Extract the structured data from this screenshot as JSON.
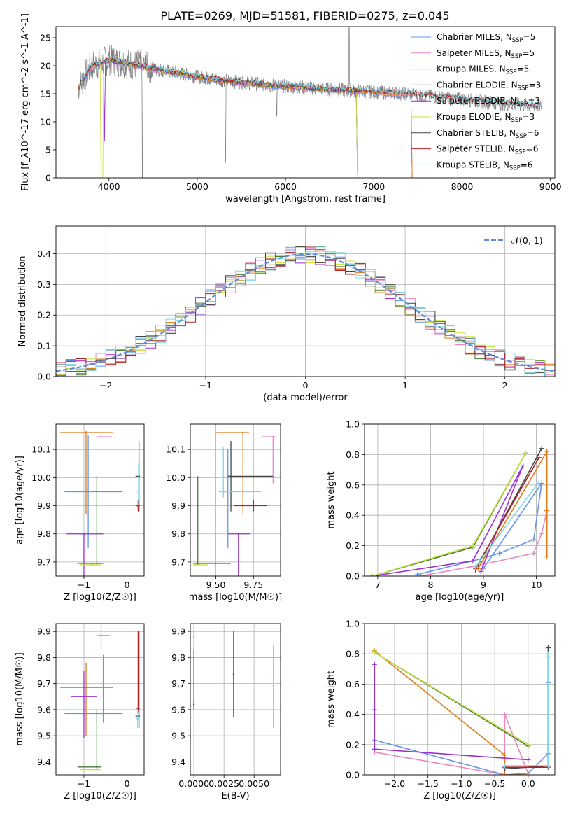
{
  "figure_title": "PLATE=0269, MJD=51581, FIBERID=0275, z=0.045",
  "colors": {
    "chab_miles": "#6495ed",
    "salp_miles": "#e889c0",
    "krou_miles": "#e07b1a",
    "chab_elodie": "#4a7a3a",
    "salp_elodie": "#9932cc",
    "krou_elodie": "#c8e040",
    "chab_stelib": "#444444",
    "salp_stelib": "#b22222",
    "krou_stelib": "#7fd8e8",
    "data": "#808080",
    "gauss": "#5b8dd6"
  },
  "chart_data": [
    {
      "id": "spectrum",
      "type": "line",
      "xlabel": "wavelength [Angstrom, rest frame]",
      "ylabel": "Flux [f_λ10^-17 erg cm^-2 s^-1 A^-1]",
      "xlim": [
        3400,
        9050
      ],
      "ylim": [
        0,
        27
      ],
      "xticks": [
        4000,
        5000,
        6000,
        7000,
        8000,
        9000
      ],
      "yticks": [
        0,
        5,
        10,
        15,
        20,
        25
      ],
      "legend_position": "upper right",
      "continuum_anchors": {
        "x": [
          3650,
          3800,
          4000,
          4200,
          4500,
          5000,
          5500,
          6000,
          6500,
          7000,
          7400,
          7600,
          8000,
          8500,
          8900
        ],
        "y": [
          16,
          20,
          21,
          20.5,
          19.5,
          18,
          17,
          16.3,
          15.8,
          15.3,
          15.0,
          14.6,
          14.0,
          13.2,
          12.8
        ]
      },
      "legend": [
        {
          "label": "Chabrier MILES, N",
          "sub": "SSP",
          "suffix": "=5",
          "color_key": "chab_miles"
        },
        {
          "label": "Salpeter MILES, N",
          "sub": "SSP",
          "suffix": "=5",
          "color_key": "salp_miles"
        },
        {
          "label": "Kroupa MILES, N",
          "sub": "SSP",
          "suffix": "=5",
          "color_key": "krou_miles"
        },
        {
          "label": "Chabrier ELODIE, N",
          "sub": "SSP",
          "suffix": "=3",
          "color_key": "chab_elodie"
        },
        {
          "label": "Salpeter ELODIE, N",
          "sub": "SSP",
          "suffix": "=3",
          "color_key": "salp_elodie"
        },
        {
          "label": "Kroupa ELODIE, N",
          "sub": "SSP",
          "suffix": "=3",
          "color_key": "krou_elodie"
        },
        {
          "label": "Chabrier STELIB, N",
          "sub": "SSP",
          "suffix": "=6",
          "color_key": "chab_stelib"
        },
        {
          "label": "Salpeter STELIB, N",
          "sub": "SSP",
          "suffix": "=6",
          "color_key": "salp_stelib"
        },
        {
          "label": "Kroupa STELIB, N",
          "sub": "SSP",
          "suffix": "=6",
          "color_key": "krou_stelib"
        }
      ]
    },
    {
      "id": "residuals",
      "type": "line",
      "xlabel": "(data-model)/error",
      "ylabel": "Normed distribution",
      "xlim": [
        -2.5,
        2.5
      ],
      "ylim": [
        0,
        0.49
      ],
      "xticks": [
        -2,
        -1,
        0,
        1,
        2
      ],
      "yticks": [
        0.0,
        0.1,
        0.2,
        0.3,
        0.4
      ],
      "grid": true,
      "legend": [
        {
          "label": "𝒩(0, 1)",
          "style": "dashed"
        }
      ],
      "legend_position": "upper right"
    },
    {
      "id": "age_vs_Z",
      "type": "scatter",
      "xlabel": "Z [log10(Z/Z☉)]",
      "ylabel": "age  [log10(age/yr)]",
      "xlim": [
        -1.65,
        0.4
      ],
      "ylim": [
        9.65,
        10.19
      ],
      "xticks": [
        -1,
        0
      ],
      "yticks": [
        9.7,
        9.8,
        9.9,
        10.0,
        10.1
      ],
      "grid": true,
      "points": [
        {
          "k": "chab_miles",
          "x": -0.9,
          "y": 9.95,
          "xe": [
            -1.45,
            -0.1
          ],
          "ye": [
            9.75,
            10.15
          ]
        },
        {
          "k": "salp_miles",
          "x": -0.6,
          "y": 10.145,
          "xe": [
            -0.7,
            -0.35
          ],
          "ye": [
            10.145,
            10.145
          ]
        },
        {
          "k": "krou_miles",
          "x": -0.95,
          "y": 10.16,
          "xe": [
            -1.55,
            -0.33
          ],
          "ye": [
            9.87,
            10.165
          ]
        },
        {
          "k": "chab_elodie",
          "x": -0.7,
          "y": 9.695,
          "xe": [
            -1.15,
            -0.55
          ],
          "ye": [
            9.69,
            10.005
          ]
        },
        {
          "k": "salp_elodie",
          "x": -1.0,
          "y": 9.8,
          "xe": [
            -1.4,
            -0.55
          ],
          "ye": [
            9.65,
            9.8
          ]
        },
        {
          "k": "krou_elodie",
          "x": -0.8,
          "y": 9.69,
          "xe": [
            -1.1,
            -0.6
          ],
          "ye": [
            9.69,
            9.69
          ]
        },
        {
          "k": "chab_stelib",
          "x": 0.28,
          "y": 10.005,
          "xe": [
            0.2,
            0.3
          ],
          "ye": [
            9.88,
            10.13
          ]
        },
        {
          "k": "salp_stelib",
          "x": 0.26,
          "y": 9.9,
          "xe": [
            0.2,
            0.3
          ],
          "ye": [
            9.88,
            9.92
          ]
        },
        {
          "k": "krou_stelib",
          "x": 0.27,
          "y": 9.95,
          "xe": [
            0.24,
            0.29
          ],
          "ye": [
            9.9,
            10.05
          ]
        }
      ]
    },
    {
      "id": "age_vs_mass",
      "type": "scatter",
      "xlabel": "mass [log10(M/M☉)]",
      "ylabel": "",
      "xlim": [
        9.33,
        9.93
      ],
      "ylim": [
        9.65,
        10.19
      ],
      "xticks": [
        9.5,
        9.75
      ],
      "xtick_labels": [
        "9.50",
        "9.75"
      ],
      "yticks": [
        9.7,
        9.8,
        9.9,
        10.0,
        10.1
      ],
      "grid": true,
      "points": [
        {
          "k": "chab_miles",
          "x": 9.58,
          "y": 9.95,
          "xe": [
            9.55,
            9.61
          ],
          "ye": [
            9.75,
            10.1
          ]
        },
        {
          "k": "salp_miles",
          "x": 9.88,
          "y": 10.145,
          "xe": [
            9.81,
            9.9
          ],
          "ye": [
            9.98,
            10.145
          ]
        },
        {
          "k": "krou_miles",
          "x": 9.68,
          "y": 10.16,
          "xe": [
            9.5,
            9.72
          ],
          "ye": [
            9.87,
            10.165
          ]
        },
        {
          "k": "chab_elodie",
          "x": 9.38,
          "y": 9.695,
          "xe": [
            9.35,
            9.6
          ],
          "ye": [
            9.69,
            10.005
          ]
        },
        {
          "k": "salp_elodie",
          "x": 9.65,
          "y": 9.8,
          "xe": [
            9.58,
            9.73
          ],
          "ye": [
            9.65,
            9.8
          ]
        },
        {
          "k": "krou_elodie",
          "x": 9.37,
          "y": 9.69,
          "xe": [
            9.35,
            9.45
          ],
          "ye": [
            9.69,
            9.69
          ]
        },
        {
          "k": "chab_stelib",
          "x": 9.6,
          "y": 10.005,
          "xe": [
            9.58,
            9.88
          ],
          "ye": [
            9.88,
            10.13
          ]
        },
        {
          "k": "salp_stelib",
          "x": 9.75,
          "y": 9.9,
          "xe": [
            9.62,
            9.84
          ],
          "ye": [
            9.88,
            9.92
          ]
        },
        {
          "k": "krou_stelib",
          "x": 9.55,
          "y": 9.95,
          "xe": [
            9.52,
            9.8
          ],
          "ye": [
            9.93,
            10.11
          ]
        }
      ]
    },
    {
      "id": "weight_vs_age",
      "type": "line",
      "xlabel": "age  [log10(age/yr)]",
      "ylabel": "mass weight",
      "xlim": [
        6.75,
        10.35
      ],
      "ylim": [
        0,
        1.0
      ],
      "xticks": [
        7,
        8,
        9,
        10
      ],
      "yticks": [
        0.0,
        0.2,
        0.4,
        0.6,
        0.8,
        1.0
      ],
      "grid": true,
      "series": [
        {
          "k": "chab_miles",
          "x": [
            7.75,
            8.8,
            9.3,
            9.95,
            10.1,
            9.0
          ],
          "y": [
            0.01,
            0.1,
            0.15,
            0.24,
            0.61,
            0.05
          ]
        },
        {
          "k": "salp_miles",
          "x": [
            7.8,
            8.9,
            9.95,
            10.1,
            10.2
          ],
          "y": [
            0.0,
            0.07,
            0.15,
            0.28,
            0.43
          ]
        },
        {
          "k": "krou_miles",
          "x": [
            8.9,
            10.2,
            10.2,
            10.2
          ],
          "y": [
            0.05,
            0.82,
            0.43,
            0.13
          ]
        },
        {
          "k": "chab_elodie",
          "x": [
            6.9,
            8.8,
            9.8
          ],
          "y": [
            0.0,
            0.19,
            0.81
          ]
        },
        {
          "k": "salp_elodie",
          "x": [
            6.9,
            8.8,
            9.75,
            8.95
          ],
          "y": [
            0.0,
            0.1,
            0.73,
            0.03
          ]
        },
        {
          "k": "krou_elodie",
          "x": [
            6.9,
            8.8,
            9.8
          ],
          "y": [
            0.0,
            0.2,
            0.81
          ]
        },
        {
          "k": "chab_stelib",
          "x": [
            8.85,
            10.1
          ],
          "y": [
            0.04,
            0.84
          ]
        },
        {
          "k": "salp_stelib",
          "x": [
            8.85,
            10.05
          ],
          "y": [
            0.05,
            0.78
          ]
        },
        {
          "k": "krou_stelib",
          "x": [
            8.85,
            10.05
          ],
          "y": [
            0.06,
            0.62
          ]
        }
      ]
    },
    {
      "id": "mass_vs_Z",
      "type": "scatter",
      "xlabel": "Z [log10(Z/Z☉)]",
      "ylabel": "mass [log10(M/M☉)]",
      "xlim": [
        -1.65,
        0.4
      ],
      "ylim": [
        9.35,
        9.93
      ],
      "xticks": [
        -1,
        0
      ],
      "yticks": [
        9.4,
        9.5,
        9.6,
        9.7,
        9.8,
        9.9
      ],
      "grid": true,
      "points": [
        {
          "k": "chab_miles",
          "x": -0.55,
          "y": 9.585,
          "xe": [
            -1.45,
            -0.1
          ],
          "ye": [
            9.55,
            9.81
          ]
        },
        {
          "k": "salp_miles",
          "x": -0.6,
          "y": 9.885,
          "xe": [
            -0.7,
            -0.4
          ],
          "ye": [
            9.83,
            9.93
          ]
        },
        {
          "k": "krou_miles",
          "x": -0.95,
          "y": 9.685,
          "xe": [
            -1.55,
            -0.33
          ],
          "ye": [
            9.5,
            9.78
          ]
        },
        {
          "k": "chab_elodie",
          "x": -0.7,
          "y": 9.38,
          "xe": [
            -1.15,
            -0.6
          ],
          "ye": [
            9.37,
            9.6
          ]
        },
        {
          "k": "salp_elodie",
          "x": -1.0,
          "y": 9.65,
          "xe": [
            -1.3,
            -0.7
          ],
          "ye": [
            9.49,
            9.75
          ]
        },
        {
          "k": "krou_elodie",
          "x": -0.85,
          "y": 9.37,
          "xe": [
            -1.1,
            -0.6
          ],
          "ye": [
            9.37,
            9.37
          ]
        },
        {
          "k": "chab_stelib",
          "x": 0.28,
          "y": 9.575,
          "xe": [
            0.2,
            0.3
          ],
          "ye": [
            9.53,
            9.9
          ]
        },
        {
          "k": "salp_stelib",
          "x": 0.26,
          "y": 9.605,
          "xe": [
            0.2,
            0.3
          ],
          "ye": [
            9.59,
            9.9
          ]
        },
        {
          "k": "krou_stelib",
          "x": 0.25,
          "y": 9.565,
          "xe": [
            0.2,
            0.28
          ],
          "ye": [
            9.53,
            9.6
          ]
        }
      ]
    },
    {
      "id": "mass_vs_EBV",
      "type": "scatter",
      "xlabel": "E(B-V)",
      "ylabel": "",
      "xlim": [
        -0.0003,
        0.0072
      ],
      "ylim": [
        9.35,
        9.93
      ],
      "xticks": [
        0.0,
        0.0025,
        0.005
      ],
      "xtick_labels": [
        "0.0000",
        "0.0025",
        "0.0050"
      ],
      "yticks": [
        9.4,
        9.5,
        9.6,
        9.7,
        9.8,
        9.9
      ],
      "grid": true,
      "points": [
        {
          "k": "chab_stelib",
          "x": 0.0033,
          "y": 9.735,
          "ye": [
            9.57,
            9.9
          ]
        },
        {
          "k": "krou_stelib",
          "x": 0.0066,
          "y": 9.69,
          "ye": [
            9.53,
            9.85
          ]
        },
        {
          "k": "salp_stelib",
          "x": 0.0,
          "y": 9.62,
          "ye": [
            9.55,
            9.92
          ]
        },
        {
          "k": "krou_elodie",
          "x": 0.0,
          "y": 9.48,
          "ye": [
            9.37,
            9.6
          ]
        },
        {
          "k": "salp_miles",
          "x": 0.0,
          "y": 9.88,
          "ye": [
            9.83,
            9.93
          ]
        }
      ]
    },
    {
      "id": "weight_vs_Z",
      "type": "line",
      "xlabel": "Z [log10(Z/Z☉)]",
      "ylabel": "mass weight",
      "xlim": [
        -2.45,
        0.4
      ],
      "ylim": [
        0,
        1.0
      ],
      "xticks": [
        -2.0,
        -1.5,
        -1.0,
        -0.5,
        0.0
      ],
      "xtick_labels": [
        "−2.0",
        "−1.5",
        "−1.0",
        "−0.5",
        "0.0"
      ],
      "yticks": [
        0.0,
        0.2,
        0.4,
        0.6,
        0.8,
        1.0
      ],
      "grid": true,
      "series": [
        {
          "k": "chab_miles",
          "x": [
            -2.3,
            -0.35,
            0.0,
            0.3,
            0.3
          ],
          "y": [
            0.23,
            0.0,
            0.01,
            0.14,
            0.61
          ]
        },
        {
          "k": "salp_miles",
          "x": [
            -2.3,
            -0.35,
            -0.35,
            0.0
          ],
          "y": [
            0.15,
            0.0,
            0.4,
            0.01
          ]
        },
        {
          "k": "krou_miles",
          "x": [
            -2.3,
            -0.35,
            -0.35,
            0.0
          ],
          "y": [
            0.82,
            0.13,
            0.0,
            0.0
          ]
        },
        {
          "k": "chab_elodie",
          "x": [
            -2.3,
            0.0
          ],
          "y": [
            0.81,
            0.19
          ]
        },
        {
          "k": "salp_elodie",
          "x": [
            -2.3,
            -2.3,
            -2.3,
            0.0
          ],
          "y": [
            0.43,
            0.73,
            0.17,
            0.1
          ]
        },
        {
          "k": "krou_elodie",
          "x": [
            -2.3,
            0.0
          ],
          "y": [
            0.81,
            0.2
          ]
        },
        {
          "k": "chab_stelib",
          "x": [
            -0.35,
            0.3,
            0.3
          ],
          "y": [
            0.04,
            0.06,
            0.84
          ]
        },
        {
          "k": "salp_stelib",
          "x": [
            -0.35,
            0.3,
            0.3
          ],
          "y": [
            0.05,
            0.05,
            0.78
          ]
        },
        {
          "k": "krou_stelib",
          "x": [
            -0.35,
            0.3,
            0.3
          ],
          "y": [
            0.06,
            0.06,
            0.8
          ]
        }
      ]
    }
  ]
}
